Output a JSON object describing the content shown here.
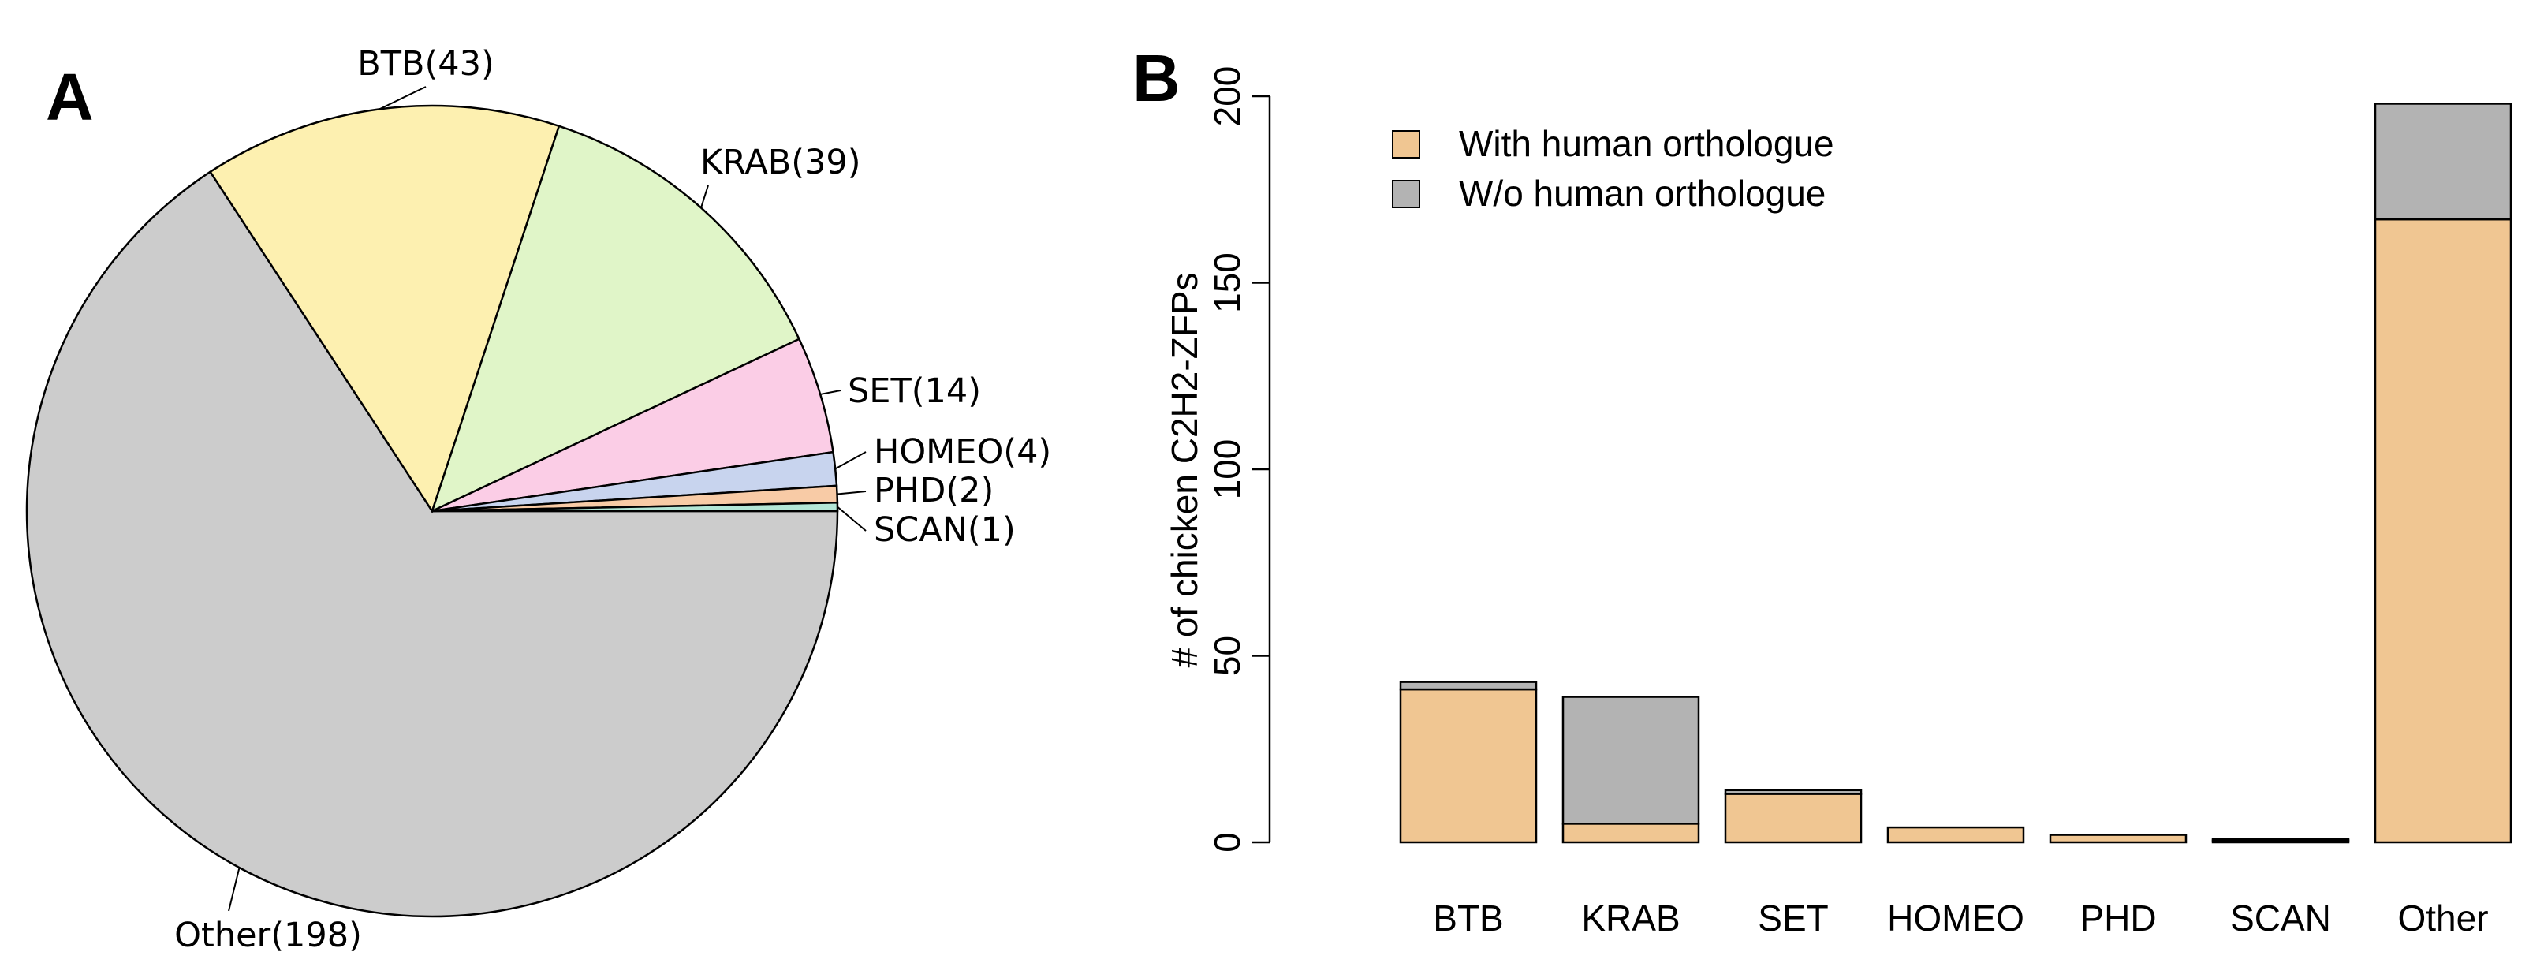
{
  "chart_data": [
    {
      "panel": "A",
      "type": "pie",
      "title": "",
      "slices": [
        {
          "label": "Other(198)",
          "category": "Other",
          "value": 198,
          "color": "#cccccc"
        },
        {
          "label": "BTB(43)",
          "category": "BTB",
          "value": 43,
          "color": "#fdf0b0"
        },
        {
          "label": "KRAB(39)",
          "category": "KRAB",
          "value": 39,
          "color": "#e0f5c8"
        },
        {
          "label": "SET(14)",
          "category": "SET",
          "value": 14,
          "color": "#fbcde6"
        },
        {
          "label": "HOMEO(4)",
          "category": "HOMEO",
          "value": 4,
          "color": "#c8d4ee"
        },
        {
          "label": "PHD(2)",
          "category": "PHD",
          "value": 2,
          "color": "#f8cba6"
        },
        {
          "label": "SCAN(1)",
          "category": "SCAN",
          "value": 1,
          "color": "#b3e6d6"
        }
      ]
    },
    {
      "panel": "B",
      "type": "bar",
      "stacked": true,
      "title": "",
      "xlabel": "",
      "ylabel": "# of chicken C2H2-ZFPs",
      "ylim": [
        0,
        200
      ],
      "yticks": [
        "0",
        "50",
        "100",
        "150",
        "200"
      ],
      "categories": [
        "BTB",
        "KRAB",
        "SET",
        "HOMEO",
        "PHD",
        "SCAN",
        "Other"
      ],
      "series": [
        {
          "name": "With human orthologue",
          "color": "#f0c692",
          "values": [
            41,
            5,
            13,
            4,
            2,
            0.5,
            167
          ]
        },
        {
          "name": "W/o human orthologue",
          "color": "#b3b3b3",
          "values": [
            2,
            34,
            1,
            0,
            0,
            0.5,
            31
          ]
        }
      ],
      "legend": [
        "With human orthologue",
        "W/o human orthologue"
      ],
      "legend_position": "top-left"
    }
  ]
}
